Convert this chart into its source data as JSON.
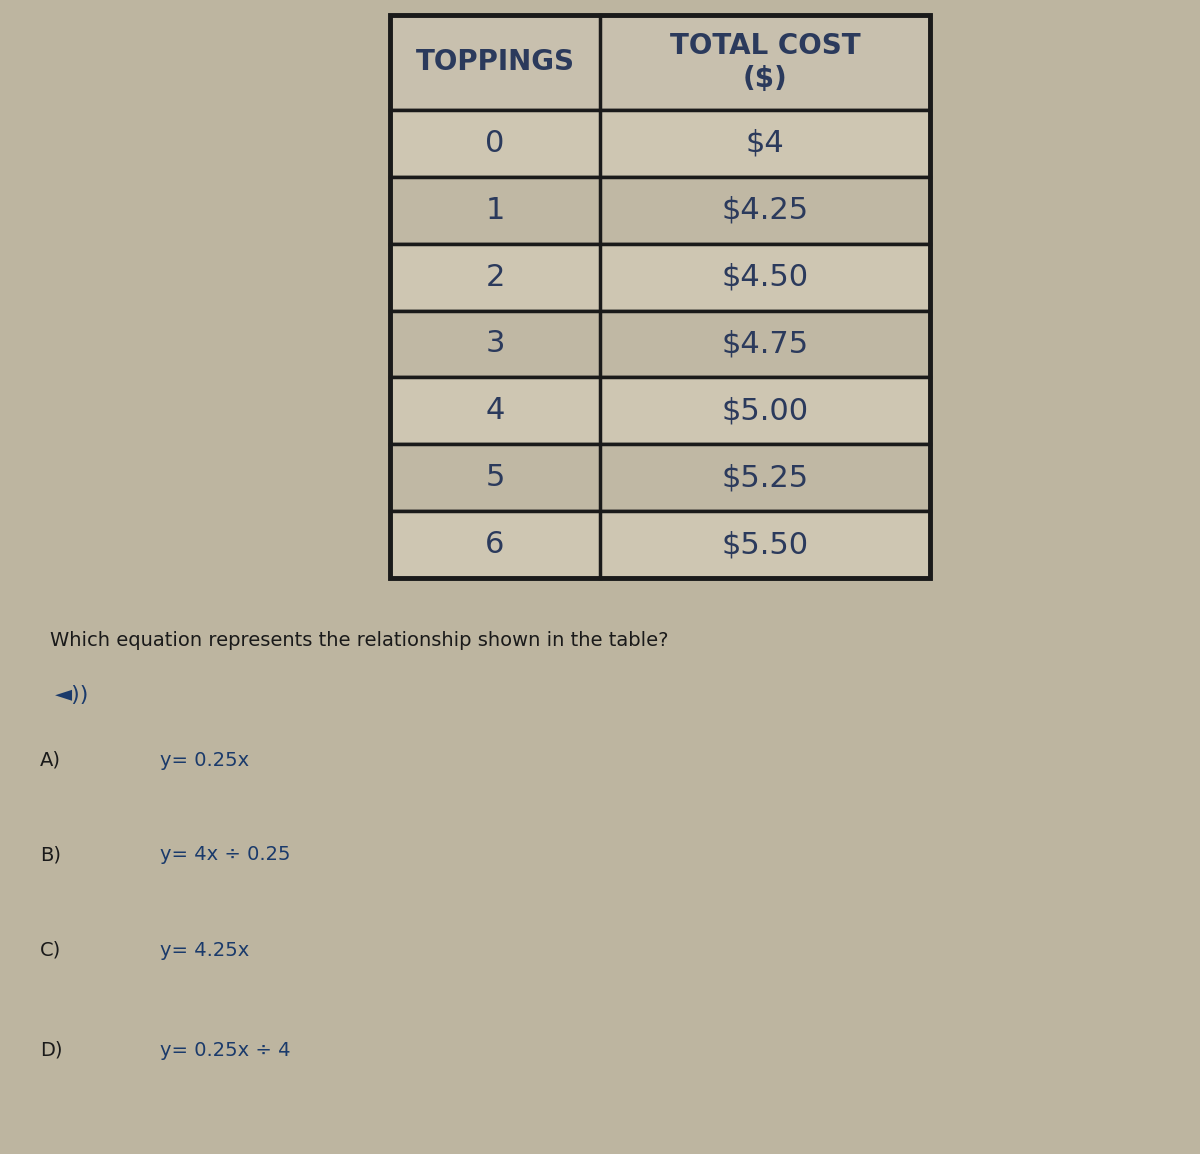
{
  "col1_header": "TOPPINGS",
  "col2_header": "TOTAL COST\n($)",
  "toppings": [
    "0",
    "1",
    "2",
    "3",
    "4",
    "5",
    "6"
  ],
  "costs": [
    "$4",
    "$4.25",
    "$4.50",
    "$4.75",
    "$5.00",
    "$5.25",
    "$5.50"
  ],
  "question": "Which equation represents the relationship shown in the table?",
  "speaker_icon": "◄))",
  "options": [
    {
      "label": "A)",
      "equation": "y= 0.25x"
    },
    {
      "label": "B)",
      "equation": "y= 4x ÷ 0.25"
    },
    {
      "label": "C)",
      "equation": "y= 4.25x"
    },
    {
      "label": "D)",
      "equation": "y= 0.25x ÷ 4"
    }
  ],
  "bg_color": "#bdb5a0",
  "table_border_color": "#1a1a1a",
  "header_text_color": "#2b3a5c",
  "cell_text_color": "#2b3a5c",
  "question_text_color": "#1a1a1a",
  "option_label_color": "#1a1a1a",
  "option_text_color": "#1a3a6b",
  "header_cell_color": "#c8c0ae",
  "data_cell_color_even": "#cec6b2",
  "data_cell_color_odd": "#c0b8a4"
}
